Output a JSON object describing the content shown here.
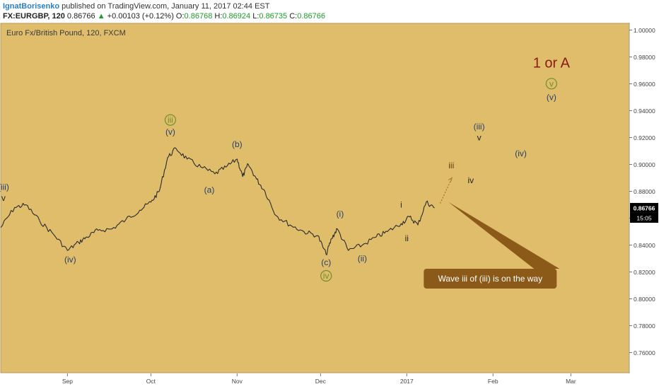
{
  "header": {
    "author": "IgnatBorisenko",
    "published": "published on TradingView.com, January 11, 2017 02:44 EST",
    "symbol": "FX:EURGBP, 120",
    "last": "0.86766",
    "change_arrow": "▲",
    "change": "+0.00103 (+0.12%)",
    "o_label": "O:",
    "o": "0.86768",
    "h_label": "H:",
    "h": "0.86924",
    "l_label": "L:",
    "l": "0.86735",
    "c_label": "C:",
    "c": "0.86766"
  },
  "colors": {
    "background": "#dfbd6a",
    "price_line": "#2b2b2b",
    "wave_blue": "#24406e",
    "wave_brown": "#5a3b0c",
    "circle_green": "#6f8f2c",
    "title_red": "#8b1a10",
    "callout": "#8b5a18",
    "price_badge": "#000000"
  },
  "chart_data": {
    "type": "line",
    "title": "Euro Fx/British Pound, 120, FXCM",
    "y_ticks": [
      "1.00000",
      "0.98000",
      "0.96000",
      "0.94000",
      "0.92000",
      "0.90000",
      "0.88000",
      "0.86000",
      "0.84000",
      "0.82000",
      "0.80000",
      "0.78000",
      "0.76000"
    ],
    "ylim": [
      0.745,
      1.005
    ],
    "x_ticks": [
      {
        "label": "Sep",
        "date": "2016-09-01"
      },
      {
        "label": "Oct",
        "date": "2016-10-01"
      },
      {
        "label": "Nov",
        "date": "2016-11-01"
      },
      {
        "label": "Dec",
        "date": "2016-12-01"
      },
      {
        "label": "2017",
        "date": "2017-01-01"
      },
      {
        "label": "Feb",
        "date": "2017-02-01"
      },
      {
        "label": "Mar",
        "date": "2017-03-01"
      }
    ],
    "xlim": [
      "2016-08-08",
      "2017-03-22"
    ],
    "series": [
      {
        "x": [
          "2016-08-08",
          "2016-08-13",
          "2016-08-17",
          "2016-08-22",
          "2016-08-27",
          "2016-09-01",
          "2016-09-05",
          "2016-09-08",
          "2016-09-12",
          "2016-09-17",
          "2016-09-22",
          "2016-09-27",
          "2016-10-01",
          "2016-10-04",
          "2016-10-07",
          "2016-10-10",
          "2016-10-14",
          "2016-10-19",
          "2016-10-24",
          "2016-10-28",
          "2016-11-01",
          "2016-11-03",
          "2016-11-05",
          "2016-11-08",
          "2016-11-11",
          "2016-11-15",
          "2016-11-20",
          "2016-11-25",
          "2016-11-30",
          "2016-12-03",
          "2016-12-05",
          "2016-12-07",
          "2016-12-11",
          "2016-12-16",
          "2016-12-21",
          "2016-12-25",
          "2016-12-30",
          "2017-01-02",
          "2017-01-05",
          "2017-01-08",
          "2017-01-11"
        ],
        "y": [
          0.853,
          0.868,
          0.87,
          0.858,
          0.848,
          0.836,
          0.842,
          0.846,
          0.851,
          0.852,
          0.859,
          0.866,
          0.872,
          0.88,
          0.905,
          0.912,
          0.904,
          0.898,
          0.893,
          0.898,
          0.904,
          0.891,
          0.9,
          0.889,
          0.88,
          0.862,
          0.855,
          0.85,
          0.847,
          0.833,
          0.845,
          0.852,
          0.836,
          0.84,
          0.846,
          0.85,
          0.856,
          0.861,
          0.855,
          0.872,
          0.8677
        ]
      }
    ],
    "last_price": "0.86766",
    "countdown": "15:05",
    "projection_dashed": {
      "x": [
        "2017-01-13",
        "2017-01-17"
      ],
      "y": [
        0.871,
        0.889
      ]
    },
    "annotations": [
      {
        "label": "(iii)",
        "color": "blue",
        "size": "medium",
        "x": "2016-08-09",
        "y": 0.881
      },
      {
        "label": "v",
        "color": "dark",
        "size": "medium",
        "x": "2016-08-09",
        "y": 0.873
      },
      {
        "label": "(iv)",
        "color": "blue",
        "size": "medium",
        "x": "2016-09-02",
        "y": 0.827
      },
      {
        "label": "iii",
        "color": "green",
        "circle": true,
        "size": "medium",
        "x": "2016-10-08",
        "y": 0.931
      },
      {
        "label": "(v)",
        "color": "blue",
        "size": "medium",
        "x": "2016-10-08",
        "y": 0.922
      },
      {
        "label": "(a)",
        "color": "blue",
        "size": "medium",
        "x": "2016-10-22",
        "y": 0.879
      },
      {
        "label": "(b)",
        "color": "blue",
        "size": "medium",
        "x": "2016-11-01",
        "y": 0.913
      },
      {
        "label": "(i)",
        "color": "blue",
        "size": "medium",
        "x": "2016-12-08",
        "y": 0.861
      },
      {
        "label": "(c)",
        "color": "blue",
        "size": "medium",
        "x": "2016-12-03",
        "y": 0.825
      },
      {
        "label": "iv",
        "color": "green",
        "circle": true,
        "size": "medium",
        "x": "2016-12-03",
        "y": 0.815
      },
      {
        "label": "(ii)",
        "color": "blue",
        "size": "medium",
        "x": "2016-12-16",
        "y": 0.828
      },
      {
        "label": "i",
        "color": "dark",
        "size": "medium",
        "x": "2016-12-30",
        "y": 0.868
      },
      {
        "label": "ii",
        "color": "dark",
        "size": "medium",
        "x": "2017-01-01",
        "y": 0.843
      },
      {
        "label": "iii",
        "color": "brown",
        "size": "medium",
        "x": "2017-01-17",
        "y": 0.897
      },
      {
        "label": "iv",
        "color": "dark",
        "size": "medium",
        "x": "2017-01-24",
        "y": 0.886
      },
      {
        "label": "(iii)",
        "color": "blue",
        "size": "medium",
        "x": "2017-01-27",
        "y": 0.926
      },
      {
        "label": "v",
        "color": "dark",
        "size": "medium",
        "x": "2017-01-27",
        "y": 0.918
      },
      {
        "label": "(iv)",
        "color": "blue",
        "size": "medium",
        "x": "2017-02-11",
        "y": 0.906
      },
      {
        "label": "v",
        "color": "green",
        "circle": true,
        "size": "medium",
        "x": "2017-02-22",
        "y": 0.958
      },
      {
        "label": "(v)",
        "color": "blue",
        "size": "medium",
        "x": "2017-02-22",
        "y": 0.948
      },
      {
        "label": "1 or A",
        "color": "red",
        "size": "large",
        "x": "2017-02-22",
        "y": 0.972
      }
    ],
    "callout": {
      "text": "Wave iii of (iii) is on the way",
      "tip": {
        "x": "2017-01-16",
        "y": 0.872
      },
      "box": {
        "x": "2017-01-31",
        "y": 0.815
      }
    }
  }
}
